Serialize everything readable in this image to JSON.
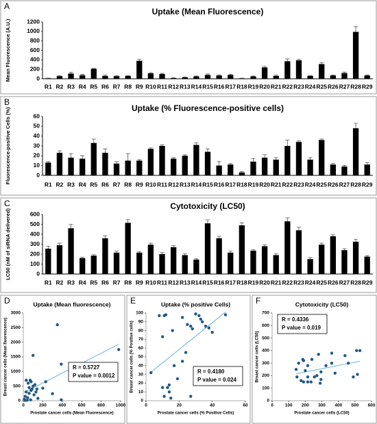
{
  "chart_data": [
    {
      "type": "bar",
      "label": "A",
      "title": "Uptake (Mean Fluorescence)",
      "y_label": "Mean Fluorescence (A.U.)",
      "categories": [
        "R1",
        "R2",
        "R3",
        "R4",
        "R5",
        "R6",
        "R7",
        "R8",
        "R9",
        "R10",
        "R11",
        "R12",
        "R13",
        "R14",
        "R15",
        "R16",
        "R17",
        "R18",
        "R19",
        "R20",
        "R21",
        "R22",
        "R23",
        "R24",
        "R25",
        "R26",
        "R27",
        "R28",
        "R29"
      ],
      "values": [
        10,
        55,
        110,
        75,
        210,
        60,
        55,
        60,
        380,
        115,
        100,
        15,
        30,
        50,
        80,
        70,
        80,
        10,
        50,
        240,
        60,
        370,
        390,
        60,
        310,
        70,
        120,
        990,
        70
      ],
      "errors": [
        5,
        10,
        25,
        20,
        10,
        15,
        10,
        10,
        30,
        15,
        15,
        5,
        10,
        10,
        20,
        15,
        15,
        5,
        10,
        20,
        15,
        50,
        20,
        10,
        30,
        10,
        20,
        110,
        15
      ],
      "color": "#000000",
      "ylim": [
        0,
        1200
      ],
      "yticks": [
        0,
        200,
        400,
        600,
        800,
        1000,
        1200
      ]
    },
    {
      "type": "bar",
      "label": "B",
      "title": "Uptake (% Fluorescence-positive cells)",
      "y_label": "Fluorescence-positive Cells (%)",
      "categories": [
        "R1",
        "R2",
        "R3",
        "R4",
        "R5",
        "R6",
        "R7",
        "R8",
        "R9",
        "R10",
        "R11",
        "R12",
        "R13",
        "R14",
        "R15",
        "R16",
        "R17",
        "R18",
        "R19",
        "R20",
        "R21",
        "R22",
        "R23",
        "R24",
        "R25",
        "R26",
        "R27",
        "R28",
        "R29"
      ],
      "values": [
        13,
        23,
        18,
        17,
        33,
        23,
        12,
        15,
        15,
        27,
        30,
        17,
        20,
        31,
        24,
        10,
        11,
        3,
        14,
        18,
        16,
        30,
        34,
        16,
        36,
        11,
        9,
        48,
        11
      ],
      "errors": [
        1,
        2,
        4,
        3,
        4,
        4,
        2,
        7,
        1,
        1,
        1,
        1,
        1,
        2,
        3,
        4,
        1,
        1,
        3,
        3,
        2,
        6,
        1,
        2,
        1,
        1,
        1,
        5,
        2
      ],
      "color": "#000000",
      "ylim": [
        0,
        60
      ],
      "yticks": [
        0,
        10,
        20,
        30,
        40,
        50,
        60
      ]
    },
    {
      "type": "bar",
      "label": "C",
      "title": "Cytotoxicity (LC50)",
      "y_label": "LC50 (nM of siRNA delivered)",
      "categories": [
        "R1",
        "R2",
        "R3",
        "R4",
        "R5",
        "R6",
        "R7",
        "R8",
        "R9",
        "R10",
        "R11",
        "R12",
        "R13",
        "R14",
        "R15",
        "R16",
        "R17",
        "R18",
        "R19",
        "R20",
        "R21",
        "R22",
        "R23",
        "R24",
        "R25",
        "R26",
        "R27",
        "R28",
        "R29"
      ],
      "values": [
        255,
        290,
        460,
        160,
        185,
        360,
        215,
        515,
        215,
        295,
        200,
        270,
        190,
        145,
        510,
        360,
        215,
        490,
        235,
        280,
        190,
        530,
        440,
        150,
        295,
        380,
        240,
        325,
        175
      ],
      "errors": [
        25,
        20,
        40,
        10,
        10,
        25,
        15,
        35,
        10,
        15,
        15,
        15,
        15,
        10,
        35,
        20,
        15,
        25,
        10,
        15,
        15,
        35,
        30,
        15,
        15,
        15,
        15,
        25,
        10
      ],
      "color": "#000000",
      "ylim": [
        0,
        600
      ],
      "yticks": [
        0,
        100,
        200,
        300,
        400,
        500,
        600
      ]
    },
    {
      "type": "scatter",
      "label": "D",
      "title": "Uptake (Mean fluorescence)",
      "x_label": "Prostate cancer cells (Mean Fluorescence)",
      "y_label": "Breast cancer cells (Mean fluorescence)",
      "x": [
        10,
        20,
        30,
        40,
        50,
        60,
        70,
        80,
        90,
        100,
        110,
        120,
        130,
        150,
        20,
        60,
        80,
        100,
        45,
        75,
        200,
        230,
        300,
        350,
        390,
        390,
        980,
        140,
        30
      ],
      "y": [
        50,
        150,
        300,
        20,
        600,
        450,
        700,
        650,
        400,
        1550,
        200,
        550,
        300,
        80,
        10,
        250,
        350,
        500,
        100,
        30,
        430,
        650,
        240,
        2600,
        1250,
        30,
        1750,
        400,
        700
      ],
      "color": "#1f5a85",
      "trend_color": "#6bb3d8",
      "xlim": [
        0,
        1000
      ],
      "xticks": [
        0,
        200,
        400,
        600,
        800,
        1000
      ],
      "ylim": [
        0,
        3000
      ],
      "yticks": [
        0,
        500,
        1000,
        1500,
        2000,
        2500,
        3000
      ],
      "annotations": [
        "R = 0.5727",
        "P value = 0.0012"
      ],
      "annotation_corner": "right"
    },
    {
      "type": "scatter",
      "label": "E",
      "title": "Uptake (% positive Cells)",
      "x_label": "Prostate cancer cells (% Positive Cells)",
      "y_label": "Breast cancer cells (% Positive cells)",
      "x": [
        3,
        8,
        10,
        11,
        12,
        10,
        11,
        13,
        14,
        15,
        16,
        17,
        19,
        22,
        24,
        25,
        27,
        28,
        27,
        30,
        32,
        33,
        34,
        36,
        38,
        40,
        48,
        14,
        22
      ],
      "y": [
        32,
        97,
        73,
        97,
        98,
        15,
        5,
        15,
        10,
        3,
        80,
        40,
        25,
        95,
        55,
        87,
        85,
        82,
        5,
        99,
        97,
        93,
        90,
        85,
        83,
        78,
        98,
        18,
        45
      ],
      "color": "#1f5a85",
      "trend_color": "#6bb3d8",
      "xlim": [
        0,
        60
      ],
      "xticks": [
        0,
        20,
        40,
        60
      ],
      "ylim": [
        0,
        100
      ],
      "yticks": [
        0,
        10,
        20,
        30,
        40,
        50,
        60,
        70,
        80,
        90,
        100
      ],
      "annotations": [
        "R = 0.4180",
        "P value = 0.024"
      ],
      "annotation_corner": "bottom-right"
    },
    {
      "type": "scatter",
      "label": "F",
      "title": "Cytotoxicity (LC50)",
      "x_label": "Prostate cancer cells (LC50)",
      "y_label": "Breast cancer cells (LC50)",
      "x": [
        145,
        160,
        175,
        185,
        190,
        190,
        200,
        215,
        215,
        215,
        235,
        240,
        255,
        270,
        280,
        290,
        295,
        295,
        325,
        360,
        360,
        380,
        440,
        460,
        490,
        510,
        515,
        530,
        150
      ],
      "y": [
        250,
        300,
        160,
        330,
        150,
        320,
        240,
        150,
        190,
        280,
        150,
        330,
        190,
        200,
        370,
        140,
        170,
        230,
        280,
        380,
        300,
        220,
        360,
        300,
        190,
        400,
        210,
        400,
        190
      ],
      "color": "#1f5a85",
      "trend_color": "#6bb3d8",
      "xlim": [
        0,
        600
      ],
      "xticks": [
        0,
        100,
        200,
        300,
        400,
        500,
        600
      ],
      "ylim": [
        0,
        700
      ],
      "yticks": [
        0,
        100,
        200,
        300,
        400,
        500,
        600,
        700
      ],
      "annotations": [
        "R = 0.4336",
        "P value = 0.019"
      ],
      "annotation_corner": "top-left"
    }
  ]
}
